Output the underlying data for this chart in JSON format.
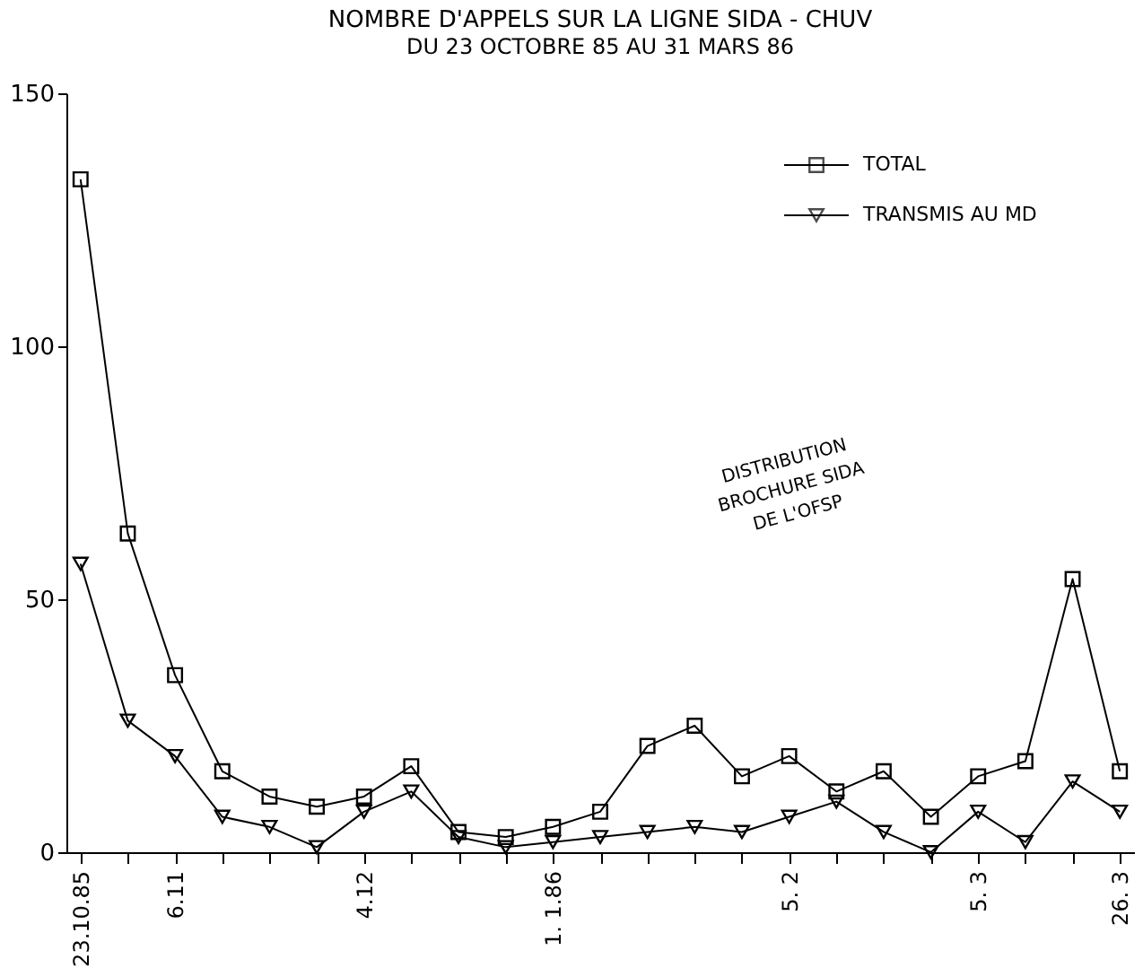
{
  "chart_data": {
    "type": "line",
    "title": "NOMBRE D'APPELS SUR LA LIGNE SIDA - CHUV",
    "subtitle": "DU 23 OCTOBRE 85 AU 31 MARS 86",
    "categories": [
      "23.10.85",
      null,
      "6.11",
      null,
      null,
      null,
      "4.12",
      null,
      null,
      null,
      "1. 1.86",
      null,
      null,
      null,
      null,
      "5. 2",
      null,
      null,
      null,
      "5. 3",
      null,
      null,
      "26. 3"
    ],
    "series": [
      {
        "name": "TOTAL",
        "color": "#000000",
        "marker": "square",
        "values": [
          133,
          63,
          35,
          16,
          11,
          9,
          11,
          17,
          4,
          3,
          5,
          8,
          21,
          25,
          15,
          19,
          12,
          16,
          7,
          15,
          18,
          54,
          16
        ]
      },
      {
        "name": "TRANSMIS AU MD",
        "color": "#000000",
        "marker": "triangle",
        "values": [
          57,
          26,
          19,
          7,
          5,
          1,
          8,
          12,
          3,
          1,
          2,
          3,
          4,
          5,
          4,
          7,
          10,
          4,
          0,
          8,
          2,
          14,
          8
        ]
      }
    ],
    "ylim": [
      0,
      150
    ],
    "yticks": [
      0,
      50,
      100,
      150
    ],
    "grid": false,
    "legend": "top right",
    "annotations": [
      "DISTRIBUTION\nBROCHURE SIDA\nDE L'OFSP"
    ]
  }
}
